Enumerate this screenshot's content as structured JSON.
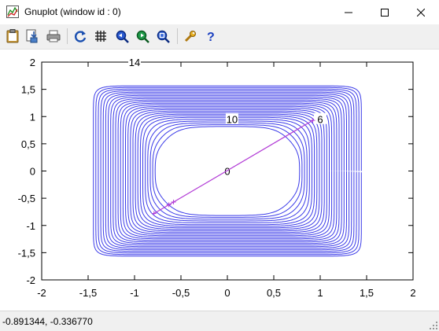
{
  "window": {
    "title": "Gnuplot (window id : 0)",
    "controls": {
      "minimize": "minimize-icon",
      "maximize": "maximize-icon",
      "close": "close-icon"
    }
  },
  "toolbar": {
    "buttons": [
      {
        "name": "clipboard-copy-button",
        "icon": "clipboard-icon"
      },
      {
        "name": "print-to-file-button",
        "icon": "save-icon"
      },
      {
        "name": "print-button",
        "icon": "printer-icon"
      },
      {
        "name": "replot-button",
        "icon": "refresh-icon"
      },
      {
        "name": "grid-toggle-button",
        "icon": "grid-icon"
      },
      {
        "name": "zoom-previous-button",
        "icon": "zoom-previous-icon"
      },
      {
        "name": "zoom-next-button",
        "icon": "zoom-next-icon"
      },
      {
        "name": "unzoom-button",
        "icon": "unzoom-icon"
      },
      {
        "name": "options-button",
        "icon": "wrench-icon"
      },
      {
        "name": "help-button",
        "icon": "help-icon"
      }
    ]
  },
  "plot": {
    "x_ticks": [
      "-2",
      "-1,5",
      "-1",
      "-0,5",
      "0",
      "0,5",
      "1",
      "1,5",
      "2"
    ],
    "y_ticks": [
      "2",
      "1,5",
      "1",
      "0,5",
      "0",
      "-0,5",
      "-1",
      "-1,5",
      "-2"
    ],
    "contour_labels": [
      "14",
      "10",
      "6",
      "0"
    ],
    "colors": {
      "contour": "#3a3ae8",
      "line": "#b23cd6",
      "axes": "#000000"
    }
  },
  "chart_data": {
    "type": "line",
    "title": "",
    "xlabel": "",
    "ylabel": "",
    "xlim": [
      -2,
      2
    ],
    "ylim": [
      -2,
      2
    ],
    "contour_labels": [
      {
        "text": "14",
        "x": -1.0,
        "y": 2.0
      },
      {
        "text": "10",
        "x": 0.05,
        "y": 0.95
      },
      {
        "text": "6",
        "x": 1.0,
        "y": 0.95
      },
      {
        "text": "0",
        "x": 0.0,
        "y": 0.0
      }
    ],
    "series": [
      {
        "x": [
          -0.79,
          -0.63,
          -0.58,
          0.92
        ],
        "y": [
          -0.78,
          -0.62,
          -0.57,
          0.93
        ]
      }
    ]
  },
  "status": {
    "coordinates": "-0.891344, -0.336770"
  }
}
